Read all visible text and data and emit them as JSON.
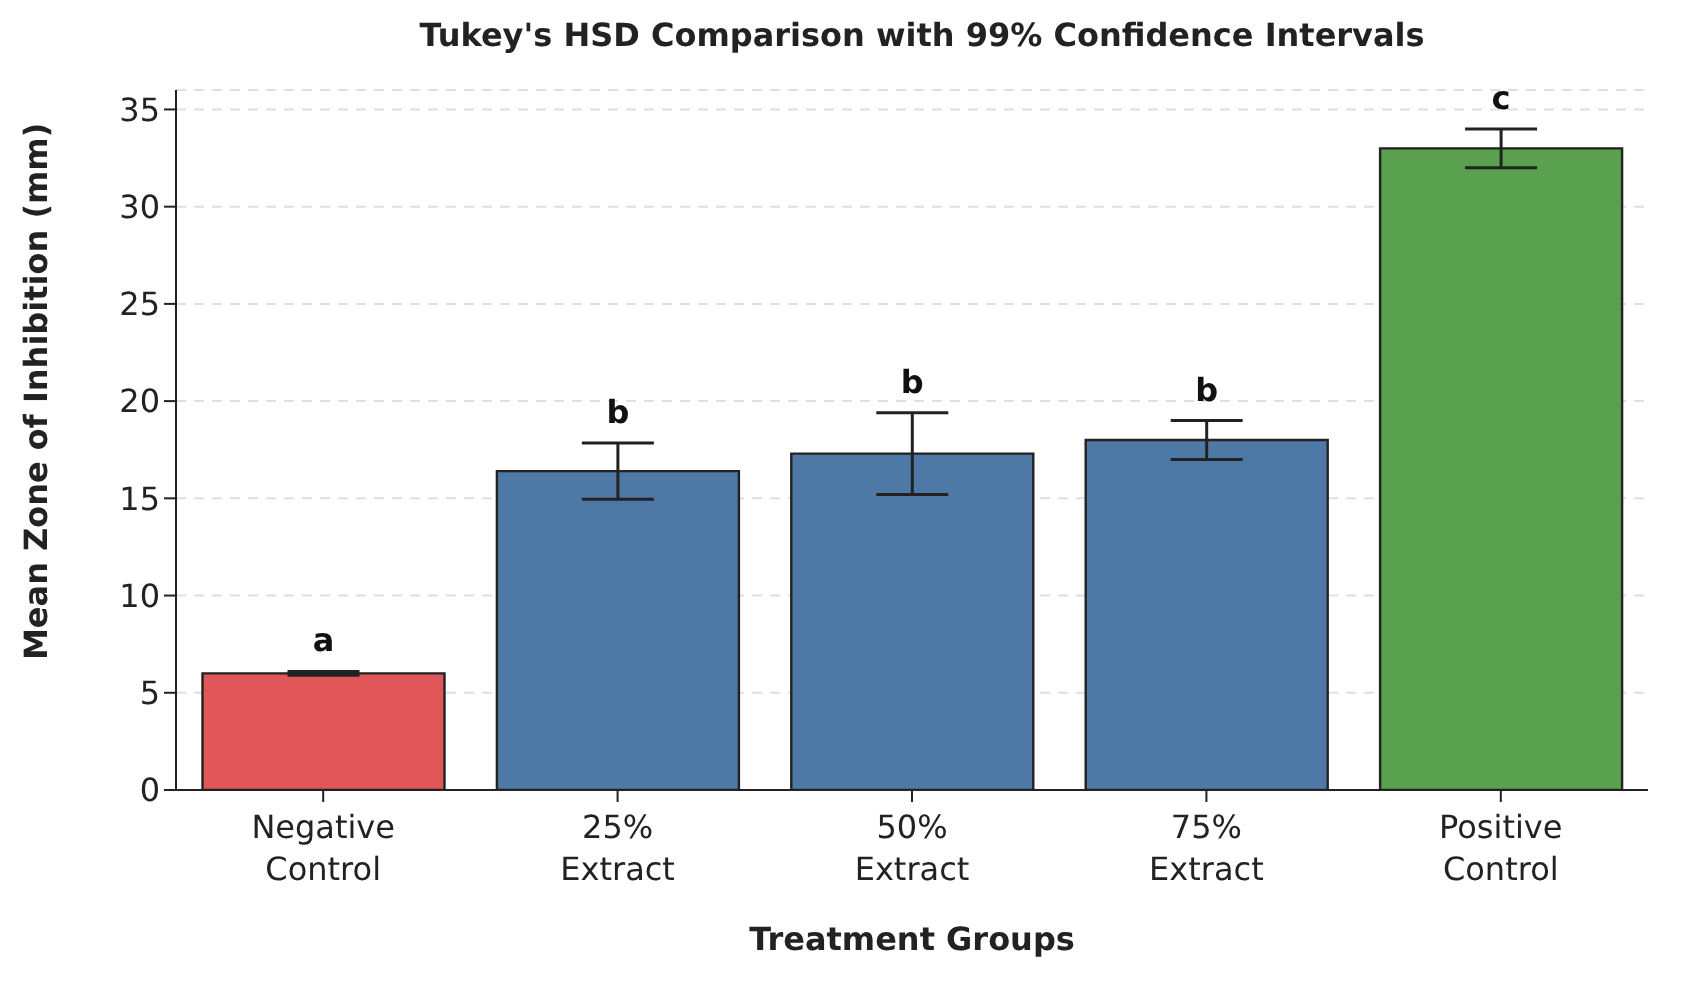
{
  "chart_data": {
    "type": "bar",
    "title": "Tukey's HSD Comparison with 99% Confidence Intervals",
    "xlabel": "Treatment Groups",
    "ylabel": "Mean Zone of Inhibition (mm)",
    "categories": [
      "Negative Control",
      "25% Extract",
      "50% Extract",
      "75% Extract",
      "Positive Control"
    ],
    "values": [
      6.0,
      16.4,
      17.3,
      18.0,
      33.0
    ],
    "errors": [
      0.1,
      1.45,
      2.1,
      1.0,
      1.0
    ],
    "colors": [
      "#e15759",
      "#4e79a7",
      "#4e79a7",
      "#4e79a7",
      "#59a14f"
    ],
    "ylim": [
      0,
      36
    ],
    "yticks": [
      0,
      5,
      10,
      15,
      20,
      25,
      30,
      35
    ],
    "grid": "y",
    "annotations": [
      "a",
      "b",
      "b",
      "b",
      "c"
    ]
  }
}
